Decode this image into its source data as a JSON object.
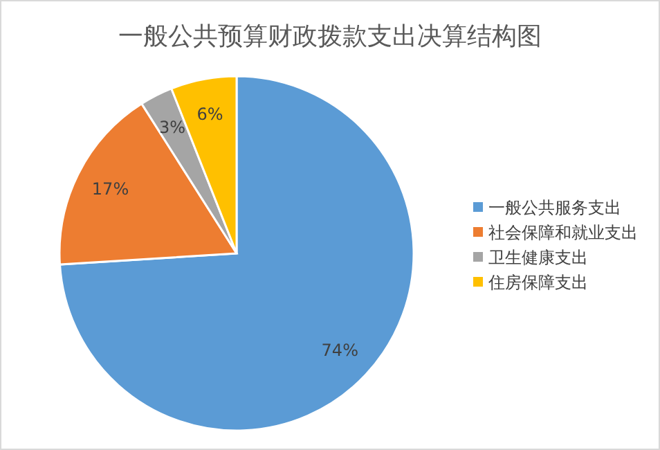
{
  "chart_data": {
    "type": "pie",
    "title": "一般公共预算财政拨款支出决算结构图",
    "categories": [
      "一般公共服务支出",
      "社会保障和就业支出",
      "卫生健康支出",
      "住房保障支出"
    ],
    "values": [
      74,
      17,
      3,
      6
    ],
    "colors": [
      "#5b9bd5",
      "#ed7d31",
      "#a5a5a5",
      "#ffc000"
    ],
    "value_labels": [
      "74%",
      "17%",
      "3%",
      "6%"
    ],
    "legend": "right"
  }
}
